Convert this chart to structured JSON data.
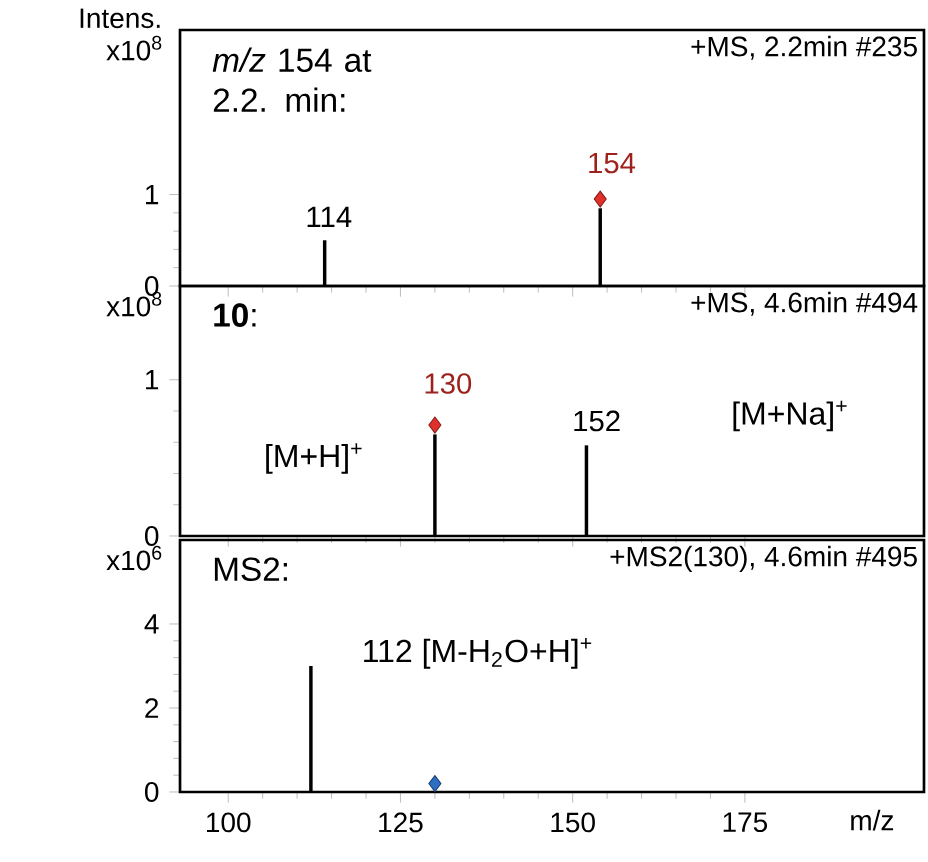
{
  "chart_data": [
    {
      "type": "bar",
      "title": "*m/z* 154 at 2.2. min:",
      "subtitle": "+MS, 2.2min #235",
      "ylabel": "Intens.",
      "xlim": [
        93,
        201
      ],
      "ylim": [
        0,
        2.8
      ],
      "xticks": [
        100,
        125,
        150,
        175
      ],
      "yticks": [
        0,
        1
      ],
      "tick_labels": "y",
      "series": [
        {
          "color": "#000000",
          "x": [
            114,
            154
          ],
          "values": [
            0.5,
            0.85
          ]
        },
        {
          "type": "scatter",
          "color": "#e0302a",
          "marker": "diamond",
          "x": [
            154
          ],
          "values": [
            0.95
          ]
        }
      ],
      "annotations": [
        "x10$^{8}$",
        "114",
        "154"
      ]
    },
    {
      "type": "bar",
      "title": "**10**:",
      "subtitle": "+MS, 4.6min #494",
      "xlim": [
        93,
        201
      ],
      "ylim": [
        0,
        1.6
      ],
      "xticks": [
        100,
        125,
        150,
        175
      ],
      "yticks": [
        0,
        1
      ],
      "tick_labels": "y",
      "series": [
        {
          "color": "#000000",
          "x": [
            130,
            152
          ],
          "values": [
            0.65,
            0.58
          ]
        },
        {
          "type": "scatter",
          "color": "#e0302a",
          "marker": "diamond",
          "x": [
            130
          ],
          "values": [
            0.71
          ]
        }
      ],
      "annotations": [
        "x10$^{8}$",
        "130",
        "152",
        "[M+H]$^{+}$",
        "[M+Na]$^{+}$"
      ]
    },
    {
      "type": "bar",
      "title": "MS2:",
      "subtitle": "+MS2(130), 4.6min #495",
      "xlabel": "m/z",
      "xlim": [
        93,
        201
      ],
      "ylim": [
        0,
        6
      ],
      "xticks": [
        100,
        125,
        150,
        175
      ],
      "yticks": [
        0,
        2,
        4
      ],
      "series": [
        {
          "color": "#000000",
          "x": [
            112
          ],
          "values": [
            3.0
          ]
        },
        {
          "type": "scatter",
          "color": "#2e6fc4",
          "marker": "diamond",
          "x": [
            130
          ],
          "values": [
            0.2
          ]
        }
      ],
      "annotations": [
        "x10$^{6}$",
        "112 [M-H$_{2}$O+H]$^{+}$"
      ]
    }
  ]
}
